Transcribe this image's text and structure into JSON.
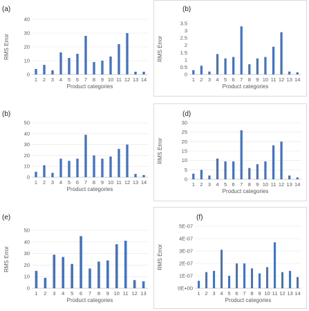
{
  "colors": {
    "bar": "#4472c4",
    "axis": "#bfbfbf",
    "grid": "#e4e4e4",
    "text": "#595959",
    "highlight_tick": "#c00000"
  },
  "chart_data": [
    {
      "panel_label": "(a)",
      "type": "bar",
      "xlabel": "Product categories",
      "ylabel": "RMS Error",
      "categories": [
        "1",
        "2",
        "3",
        "4",
        "5",
        "6",
        "7",
        "8",
        "9",
        "10",
        "11",
        "12",
        "13",
        "14"
      ],
      "values": [
        4,
        7,
        3,
        16,
        12,
        15,
        28,
        9,
        10,
        13,
        22,
        30,
        2,
        2
      ],
      "ylim": [
        0,
        40
      ],
      "yticks": [
        "0",
        "10",
        "20",
        "30",
        "40"
      ],
      "grid": true
    },
    {
      "panel_label": "(b)",
      "type": "bar",
      "xlabel": "Product categories",
      "ylabel": "RMS Error",
      "categories": [
        "1",
        "2",
        "3",
        "4",
        "5",
        "6",
        "7",
        "8",
        "9",
        "10",
        "11",
        "12",
        "13",
        "14"
      ],
      "values": [
        0.3,
        0.6,
        0.2,
        1.4,
        1.1,
        1.2,
        3.3,
        0.7,
        1.1,
        1.2,
        1.9,
        2.9,
        0.2,
        0.15
      ],
      "ylim": [
        0,
        3.5
      ],
      "yticks": [
        "0",
        "0.5",
        "1",
        "1.5",
        "2",
        "2.5",
        "3",
        "3.5"
      ],
      "grid": false
    },
    {
      "panel_label": "(b)",
      "type": "bar",
      "xlabel": "Product categories",
      "ylabel": "",
      "categories": [
        "1",
        "2",
        "3",
        "4",
        "5",
        "6",
        "7",
        "8",
        "9",
        "10",
        "11",
        "12",
        "13",
        "14"
      ],
      "values": [
        5,
        11,
        4,
        17,
        15,
        17,
        39,
        20,
        17,
        19,
        26,
        30,
        3,
        2
      ],
      "ylim": [
        0,
        50
      ],
      "yticks": [
        "0",
        "10",
        "20",
        "30",
        "40",
        "50"
      ],
      "grid": true
    },
    {
      "panel_label": "(d)",
      "type": "bar",
      "xlabel": "Product categories",
      "ylabel": "RMS Error",
      "categories": [
        "1",
        "2",
        "3",
        "4",
        "5",
        "6",
        "7",
        "8",
        "9",
        "10",
        "11",
        "12",
        "13",
        "14"
      ],
      "values": [
        3,
        5,
        2,
        11,
        9.5,
        9.5,
        26,
        6,
        8,
        9.5,
        18,
        20,
        2,
        1
      ],
      "ylim": [
        0,
        30
      ],
      "yticks": [
        "0",
        "5",
        "10",
        "15",
        "20",
        "25",
        "30"
      ],
      "grid": true
    },
    {
      "panel_label": "(e)",
      "type": "bar",
      "xlabel": "Product categories",
      "ylabel": "RMS Error",
      "categories": [
        "1",
        "2",
        "3",
        "4",
        "5",
        "6",
        "7",
        "8",
        "9",
        "10",
        "11",
        "12",
        "13"
      ],
      "values": [
        15,
        9,
        29,
        27,
        21,
        45,
        17,
        23,
        24,
        38,
        41,
        7,
        6
      ],
      "ylim": [
        0,
        50
      ],
      "yticks": [
        "0",
        "10",
        "20",
        "30",
        "40",
        "50"
      ],
      "grid": true
    },
    {
      "panel_label": "(f)",
      "type": "bar",
      "xlabel": "Product categories",
      "ylabel": "RMS Error",
      "categories": [
        "1",
        "2",
        "3",
        "4",
        "5",
        "6",
        "7",
        "8",
        "9",
        "10",
        "11",
        "12",
        "13",
        "14"
      ],
      "values": [
        6e-08,
        1.3e-07,
        1.4e-07,
        3.1e-07,
        1e-07,
        2e-07,
        2e-07,
        1.6e-07,
        1.2e-07,
        1.7e-07,
        3.7e-07,
        1.3e-07,
        1.4e-07,
        9e-08
      ],
      "ylim": [
        0,
        5e-07
      ],
      "yticks": [
        "0E+00",
        "1E-07",
        "2E-07",
        "3E-07",
        "4E-07",
        "5E-07"
      ],
      "grid": true
    }
  ]
}
